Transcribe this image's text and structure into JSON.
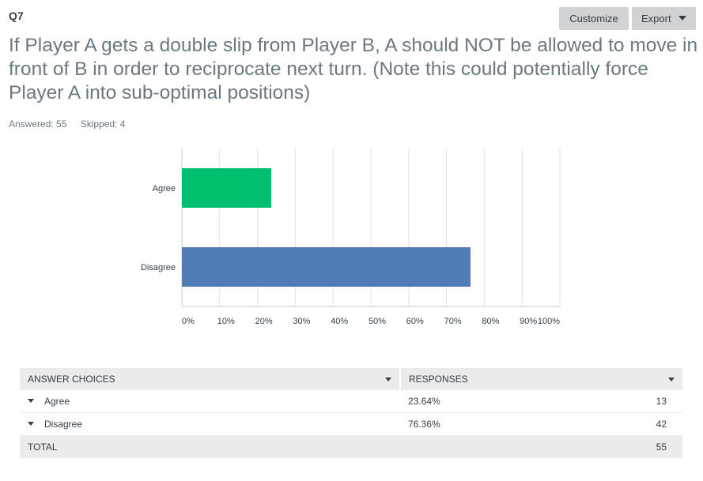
{
  "header": {
    "question_number": "Q7",
    "customize_label": "Customize",
    "export_label": "Export",
    "export_icon": "caret-down-icon"
  },
  "question": {
    "text": "If Player A gets a double slip from Player B, A should NOT be allowed to move in front of B in order to reciprocate next turn.  (Note this could potentially force Player A into sub-optimal positions)"
  },
  "stats": {
    "answered": "Answered: 55",
    "skipped": "Skipped: 4"
  },
  "chart_data": {
    "type": "bar",
    "orientation": "horizontal",
    "categories": [
      "Agree",
      "Disagree"
    ],
    "values": [
      23.64,
      76.36
    ],
    "colors": [
      "#00bf6f",
      "#507cb6"
    ],
    "xlim": [
      0,
      100
    ],
    "xticks": [
      "0%",
      "10%",
      "20%",
      "30%",
      "40%",
      "50%",
      "60%",
      "70%",
      "80%",
      "90%",
      "100%"
    ],
    "grid": true
  },
  "table": {
    "headers": [
      "ANSWER CHOICES",
      "RESPONSES"
    ],
    "rows": [
      {
        "choice": "Agree",
        "percent": "23.64%",
        "count": "13"
      },
      {
        "choice": "Disagree",
        "percent": "76.36%",
        "count": "42"
      }
    ],
    "total_label": "TOTAL",
    "total_count": "55"
  }
}
